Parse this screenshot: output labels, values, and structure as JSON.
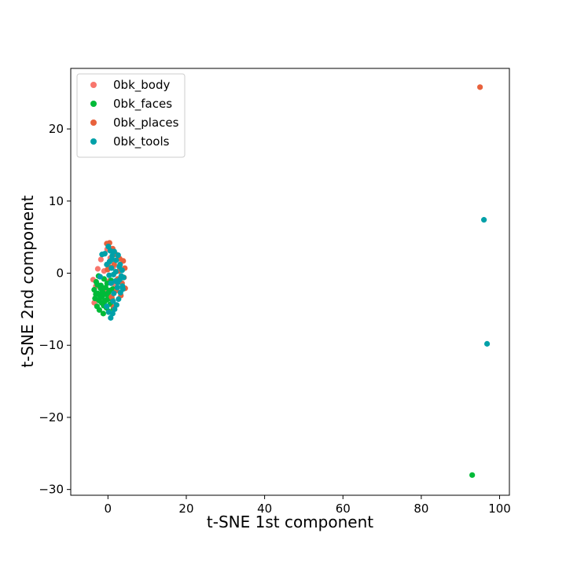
{
  "chart_data": {
    "type": "scatter",
    "xlabel": "t-SNE 1st component",
    "ylabel": "t-SNE 2nd component",
    "xlim": [
      -9.5,
      102.5
    ],
    "ylim": [
      -30.8,
      28.4
    ],
    "x_ticks": [
      0,
      20,
      40,
      60,
      80,
      100
    ],
    "y_ticks": [
      -30,
      -20,
      -10,
      0,
      10,
      20
    ],
    "x_tick_labels": [
      "0",
      "20",
      "40",
      "60",
      "80",
      "100"
    ],
    "y_tick_labels": [
      "−30",
      "−20",
      "−10",
      "0",
      "10",
      "20"
    ],
    "grid": false,
    "legend_position": "upper-left",
    "series": [
      {
        "name": "0bk_body",
        "color": "#F8766D",
        "points": [
          [
            -3.8,
            -0.9
          ],
          [
            -3.5,
            -4.1
          ],
          [
            -3.1,
            -1.8
          ],
          [
            -2.6,
            0.6
          ],
          [
            -2.2,
            -2.9
          ],
          [
            -1.8,
            1.9
          ],
          [
            -1.5,
            -3.8
          ],
          [
            -1.0,
            0.3
          ],
          [
            -0.6,
            -2.2
          ],
          [
            -0.2,
            3.3
          ],
          [
            0.2,
            -1.1
          ],
          [
            0.6,
            2.1
          ],
          [
            1.0,
            -3.4
          ],
          [
            1.4,
            0.9
          ],
          [
            1.8,
            -1.6
          ]
        ]
      },
      {
        "name": "0bk_faces",
        "color": "#00BA38",
        "points": [
          [
            -3.5,
            -2.3
          ],
          [
            -3.3,
            -3.5
          ],
          [
            -3.0,
            -1.2
          ],
          [
            -2.8,
            -4.6
          ],
          [
            -2.6,
            -2.8
          ],
          [
            -2.4,
            -0.4
          ],
          [
            -2.2,
            -5.1
          ],
          [
            -2.0,
            -3.2
          ],
          [
            -1.8,
            -1.7
          ],
          [
            -1.6,
            -4.1
          ],
          [
            -1.4,
            -2.6
          ],
          [
            -1.2,
            -5.6
          ],
          [
            -1.0,
            -0.8
          ],
          [
            -0.8,
            -3.9
          ],
          [
            -0.6,
            -2.0
          ],
          [
            -0.4,
            -4.8
          ],
          [
            -0.2,
            -1.4
          ],
          [
            0.0,
            -3.1
          ],
          [
            0.2,
            -5.3
          ],
          [
            0.4,
            -2.4
          ],
          [
            0.6,
            -4.3
          ],
          [
            0.8,
            -1.0
          ],
          [
            1.0,
            -3.6
          ],
          [
            1.2,
            -2.2
          ],
          [
            1.4,
            -4.9
          ],
          [
            -3.1,
            -2.9
          ],
          [
            -2.7,
            -1.6
          ],
          [
            -2.3,
            -3.8
          ],
          [
            -1.9,
            -2.1
          ],
          [
            -1.5,
            -3.3
          ],
          [
            -1.1,
            -4.5
          ],
          [
            -0.7,
            -2.9
          ],
          [
            -0.3,
            -3.7
          ],
          [
            0.1,
            -2.7
          ],
          [
            0.5,
            -3.5
          ],
          [
            93.0,
            -28.0
          ]
        ]
      },
      {
        "name": "0bk_places",
        "color": "#E8613C",
        "points": [
          [
            -0.3,
            4.1
          ],
          [
            0.4,
            4.2
          ],
          [
            1.2,
            3.4
          ],
          [
            2.1,
            2.6
          ],
          [
            3.0,
            2.0
          ],
          [
            3.9,
            1.7
          ],
          [
            4.3,
            0.7
          ],
          [
            4.1,
            -0.6
          ],
          [
            4.4,
            -2.1
          ],
          [
            3.6,
            -1.4
          ],
          [
            2.8,
            0.3
          ],
          [
            2.2,
            -2.4
          ],
          [
            1.5,
            -4.7
          ],
          [
            0.9,
            -3.3
          ],
          [
            -0.1,
            0.5
          ],
          [
            0.3,
            0.9
          ],
          [
            1.6,
            1.2
          ],
          [
            2.5,
            -0.8
          ],
          [
            3.3,
            -3.1
          ],
          [
            95.0,
            25.8
          ]
        ]
      },
      {
        "name": "0bk_tools",
        "color": "#00A0A8",
        "points": [
          [
            0.1,
            3.7
          ],
          [
            0.6,
            3.1
          ],
          [
            1.1,
            2.4
          ],
          [
            1.6,
            3.0
          ],
          [
            2.1,
            1.8
          ],
          [
            2.6,
            2.5
          ],
          [
            3.1,
            1.2
          ],
          [
            3.6,
            0.4
          ],
          [
            4.0,
            -0.6
          ],
          [
            3.7,
            -1.8
          ],
          [
            3.2,
            -2.7
          ],
          [
            2.7,
            -3.6
          ],
          [
            2.2,
            -4.4
          ],
          [
            1.7,
            -5.0
          ],
          [
            1.2,
            -5.6
          ],
          [
            0.7,
            -6.2
          ],
          [
            0.2,
            -5.4
          ],
          [
            -0.3,
            -4.6
          ],
          [
            0.4,
            1.6
          ],
          [
            0.9,
            0.7
          ],
          [
            1.4,
            -0.2
          ],
          [
            1.9,
            -1.1
          ],
          [
            2.4,
            -2.0
          ],
          [
            2.9,
            0.9
          ],
          [
            3.4,
            -0.4
          ],
          [
            1.0,
            1.9
          ],
          [
            1.5,
            -2.8
          ],
          [
            2.0,
            0.2
          ],
          [
            2.5,
            -1.3
          ],
          [
            3.0,
            -0.9
          ],
          [
            -1.5,
            2.6
          ],
          [
            -0.8,
            2.7
          ],
          [
            -0.3,
            1.2
          ],
          [
            0.3,
            -0.3
          ],
          [
            0.8,
            -1.4
          ],
          [
            -2.0,
            -0.5
          ],
          [
            1.3,
            -3.9
          ],
          [
            3.8,
            -2.2
          ],
          [
            96.0,
            7.4
          ],
          [
            96.8,
            -9.8
          ]
        ]
      }
    ]
  }
}
